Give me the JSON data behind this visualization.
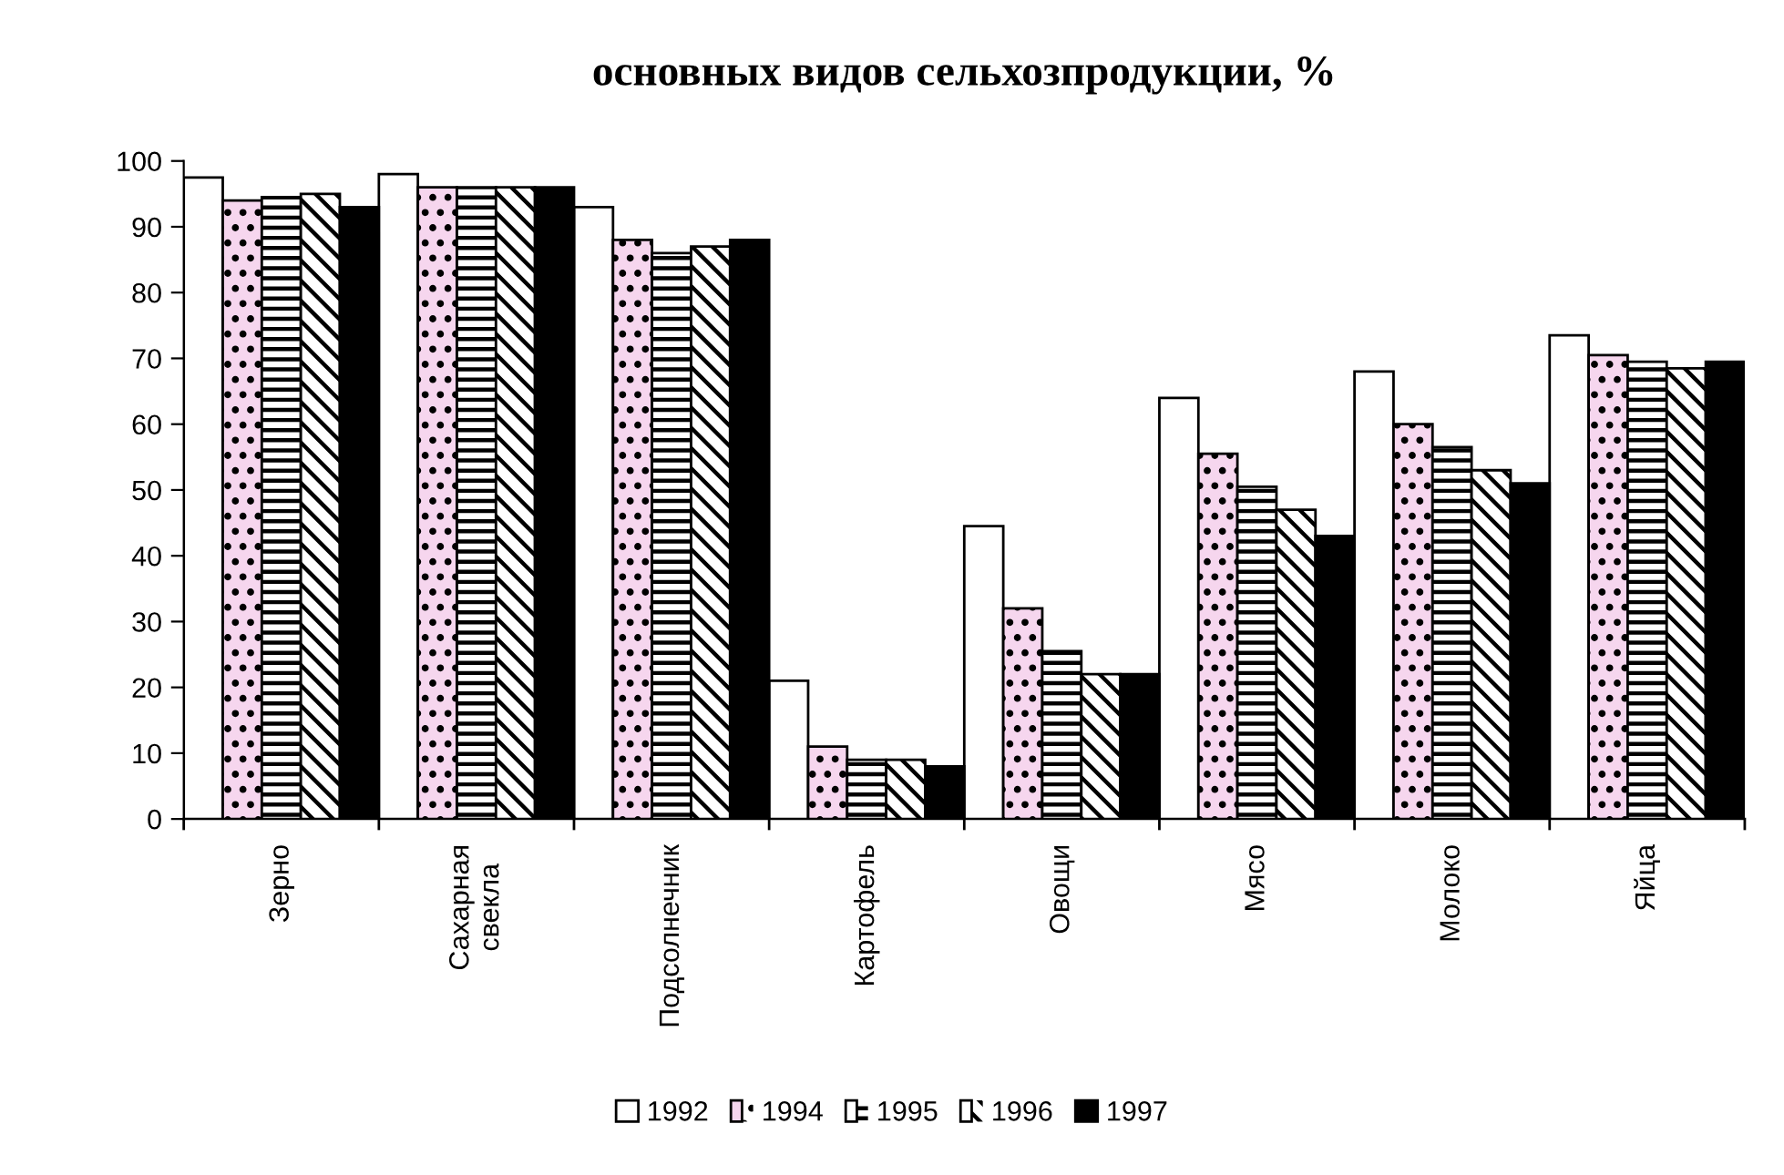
{
  "chart_data": {
    "type": "bar",
    "title": "основных видов сельхозпродукции, %",
    "categories": [
      "Зерно",
      "Сахарная\nсвекла",
      "Подсолнечник",
      "Картофель",
      "Овощи",
      "Мясо",
      "Молоко",
      "Яйца"
    ],
    "series": [
      {
        "name": "1992",
        "color": "#ffffff",
        "values": [
          97.5,
          98,
          93,
          21,
          44.5,
          64,
          68,
          73.5
        ]
      },
      {
        "name": "1994",
        "color": "#f6d6ee",
        "values": [
          94,
          96,
          88,
          11,
          32,
          55.5,
          60,
          70.5
        ]
      },
      {
        "name": "1995",
        "color": "#ffffff",
        "values": [
          94.5,
          96,
          86,
          9,
          25.5,
          50.5,
          56.5,
          69.5
        ]
      },
      {
        "name": "1996",
        "color": "#ffffff",
        "values": [
          95,
          96,
          87,
          9,
          22,
          47,
          53,
          68.5
        ]
      },
      {
        "name": "1997",
        "color": "#000000",
        "values": [
          93,
          96,
          88,
          8,
          22,
          43,
          51,
          69.5
        ]
      }
    ],
    "ylim": [
      0,
      100
    ],
    "yticks": [
      0,
      10,
      20,
      30,
      40,
      50,
      60,
      70,
      80,
      90,
      100
    ],
    "grid": false,
    "legend": "bottom"
  }
}
